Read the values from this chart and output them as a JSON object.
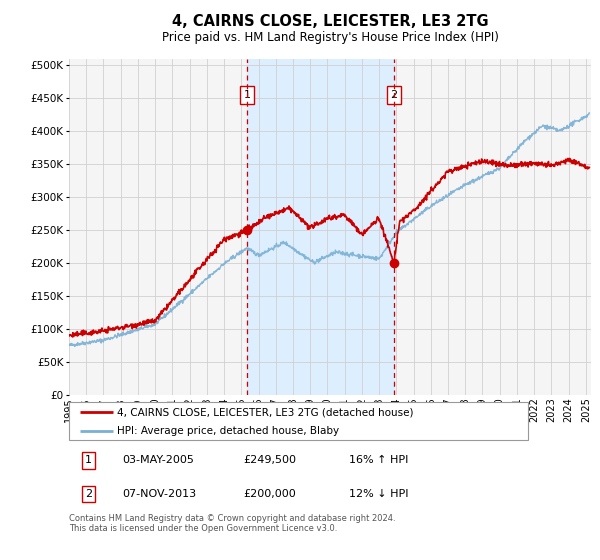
{
  "title": "4, CAIRNS CLOSE, LEICESTER, LE3 2TG",
  "subtitle": "Price paid vs. HM Land Registry's House Price Index (HPI)",
  "xlim": [
    1995.0,
    2025.3
  ],
  "ylim": [
    0,
    510000
  ],
  "yticks": [
    0,
    50000,
    100000,
    150000,
    200000,
    250000,
    300000,
    350000,
    400000,
    450000,
    500000
  ],
  "ytick_labels": [
    "£0",
    "£50K",
    "£100K",
    "£150K",
    "£200K",
    "£250K",
    "£300K",
    "£350K",
    "£400K",
    "£450K",
    "£500K"
  ],
  "xticks": [
    1995,
    1996,
    1997,
    1998,
    1999,
    2000,
    2001,
    2002,
    2003,
    2004,
    2005,
    2006,
    2007,
    2008,
    2009,
    2010,
    2011,
    2012,
    2013,
    2014,
    2015,
    2016,
    2017,
    2018,
    2019,
    2020,
    2021,
    2022,
    2023,
    2024,
    2025
  ],
  "marker1_x": 2005.35,
  "marker1_y": 249500,
  "marker2_x": 2013.85,
  "marker2_y": 200000,
  "vline_color": "#cc0000",
  "shade_color": "#ddeeff",
  "legend_label1": "4, CAIRNS CLOSE, LEICESTER, LE3 2TG (detached house)",
  "legend_label2": "HPI: Average price, detached house, Blaby",
  "table_row1_num": "1",
  "table_row1_date": "03-MAY-2005",
  "table_row1_price": "£249,500",
  "table_row1_hpi": "16% ↑ HPI",
  "table_row2_num": "2",
  "table_row2_date": "07-NOV-2013",
  "table_row2_price": "£200,000",
  "table_row2_hpi": "12% ↓ HPI",
  "footer": "Contains HM Land Registry data © Crown copyright and database right 2024.\nThis data is licensed under the Open Government Licence v3.0.",
  "line_color_property": "#cc0000",
  "line_color_hpi": "#7ab0d4",
  "bg_color": "#f5f5f5",
  "grid_color": "#d0d0d0"
}
